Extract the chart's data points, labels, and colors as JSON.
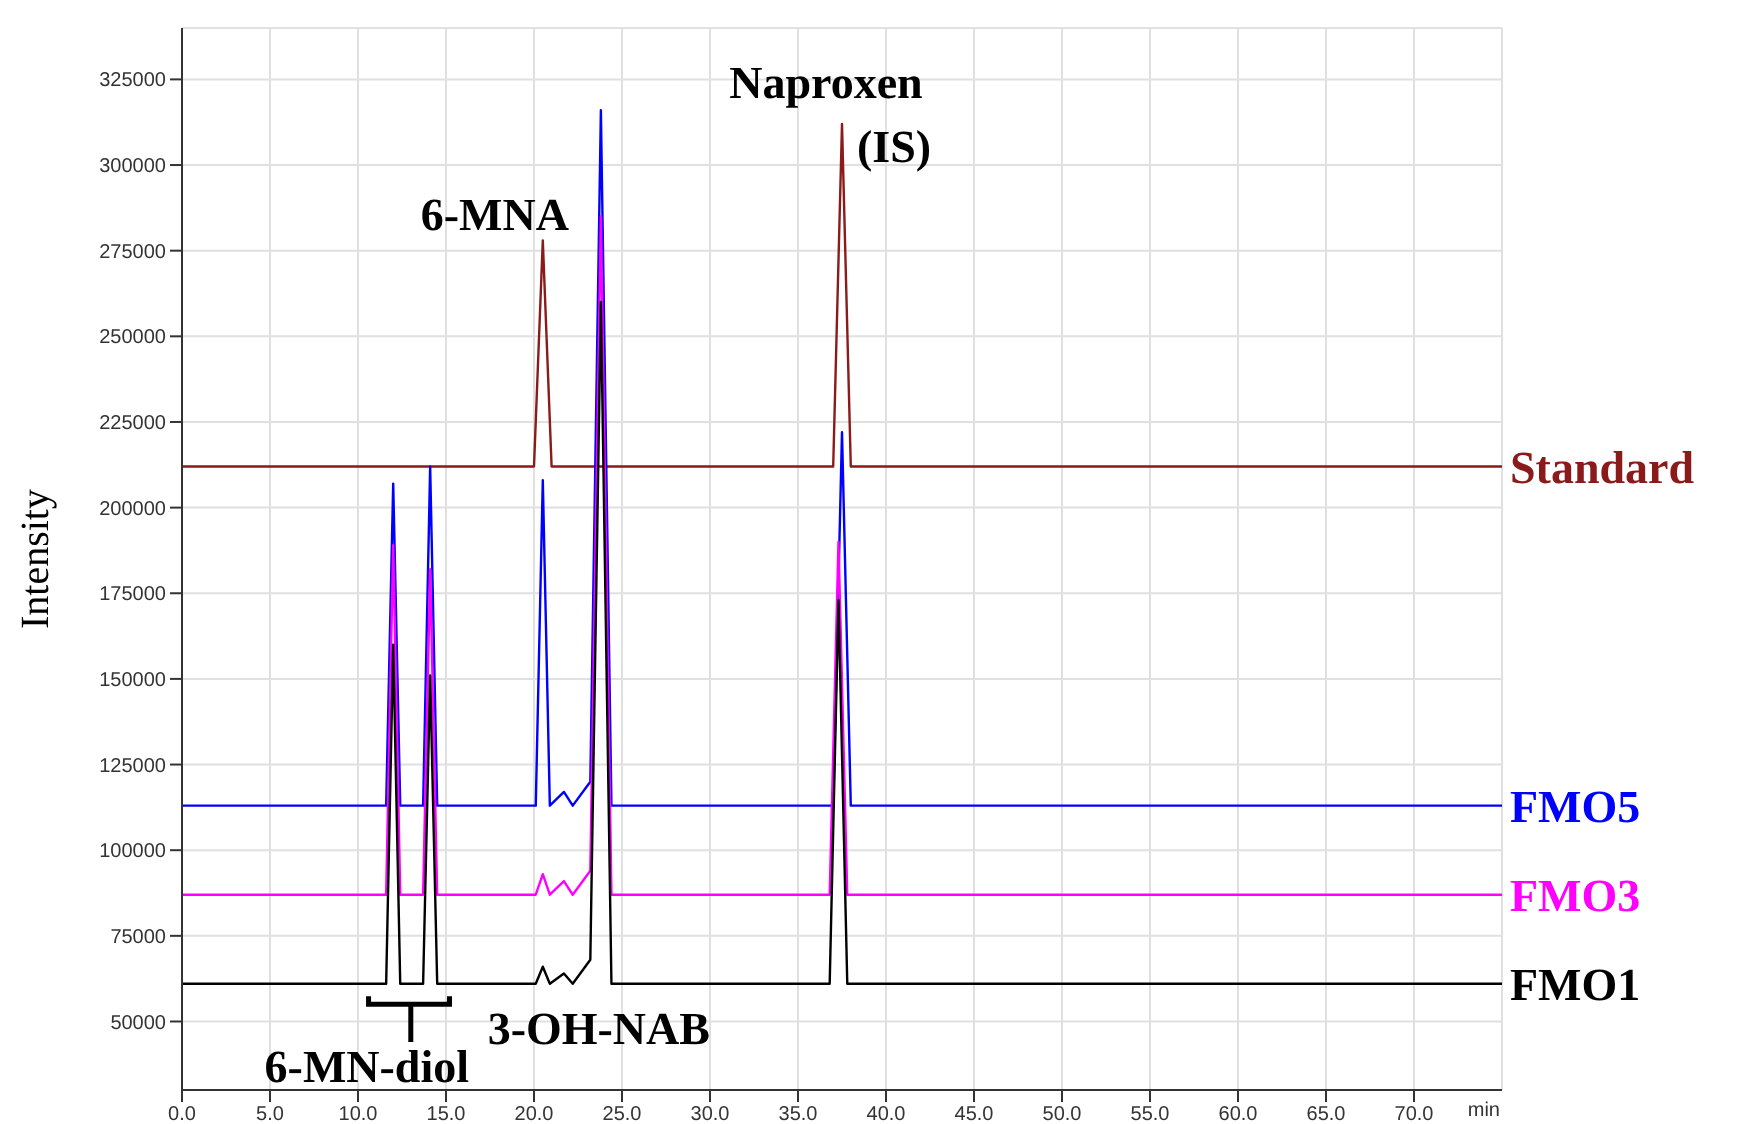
{
  "chart_data": {
    "type": "line",
    "ylabel": "Intensity",
    "xlabel": "min",
    "xlim": [
      0,
      75
    ],
    "ylim": [
      30000,
      340000
    ],
    "xticks": [
      {
        "value": 0,
        "label": "0.0"
      },
      {
        "value": 5,
        "label": "5.0"
      },
      {
        "value": 10,
        "label": "10.0"
      },
      {
        "value": 15,
        "label": "15.0"
      },
      {
        "value": 20,
        "label": "20.0"
      },
      {
        "value": 25,
        "label": "25.0"
      },
      {
        "value": 30,
        "label": "30.0"
      },
      {
        "value": 35,
        "label": "35.0"
      },
      {
        "value": 40,
        "label": "40.0"
      },
      {
        "value": 45,
        "label": "45.0"
      },
      {
        "value": 50,
        "label": "50.0"
      },
      {
        "value": 55,
        "label": "55.0"
      },
      {
        "value": 60,
        "label": "60.0"
      },
      {
        "value": 65,
        "label": "65.0"
      },
      {
        "value": 70,
        "label": "70.0"
      }
    ],
    "yticks": [
      50000,
      75000,
      100000,
      125000,
      150000,
      175000,
      200000,
      225000,
      250000,
      275000,
      300000,
      325000
    ],
    "grid": true,
    "marker": "none",
    "line_style": "solid",
    "series": [
      {
        "name": "Standard",
        "color": "#8b1a1a",
        "x": [
          0,
          20.0,
          20.5,
          21.0,
          37.0,
          37.5,
          38.0,
          75
        ],
        "values": [
          212000,
          212000,
          278000,
          212000,
          212000,
          312000,
          212000,
          212000
        ]
      },
      {
        "name": "FMO5",
        "color": "#0000ff",
        "x": [
          0,
          11.6,
          12.0,
          12.4,
          13.7,
          14.1,
          14.5,
          20.1,
          20.5,
          20.9,
          21.7,
          22.2,
          23.2,
          23.8,
          24.4,
          37.0,
          37.5,
          38.0,
          75
        ],
        "values": [
          113000,
          113000,
          207000,
          113000,
          113000,
          212000,
          113000,
          113000,
          208000,
          113000,
          117000,
          113000,
          120000,
          316000,
          113000,
          113000,
          222000,
          113000,
          113000
        ]
      },
      {
        "name": "FMO3",
        "color": "#ff00ff",
        "x": [
          0,
          11.6,
          12.0,
          12.4,
          13.7,
          14.1,
          14.5,
          20.1,
          20.5,
          20.9,
          21.7,
          22.2,
          23.2,
          23.8,
          24.4,
          36.8,
          37.3,
          37.8,
          75
        ],
        "values": [
          87000,
          87000,
          189000,
          87000,
          87000,
          182000,
          87000,
          87000,
          93000,
          87000,
          91000,
          87000,
          94000,
          285000,
          87000,
          87000,
          190000,
          87000,
          87000
        ]
      },
      {
        "name": "FMO1",
        "color": "#000000",
        "x": [
          0,
          11.6,
          12.0,
          12.4,
          13.7,
          14.1,
          14.5,
          20.1,
          20.5,
          20.9,
          21.7,
          22.2,
          23.2,
          23.8,
          24.4,
          36.8,
          37.3,
          37.8,
          75
        ],
        "values": [
          61000,
          61000,
          160000,
          61000,
          61000,
          151000,
          61000,
          61000,
          66000,
          61000,
          64000,
          61000,
          68000,
          260000,
          61000,
          61000,
          173000,
          61000,
          61000
        ]
      }
    ],
    "annotations": [
      {
        "text": "6-MNA",
        "x": 20.5,
        "y": 278000
      },
      {
        "text": "Naproxen (IS)",
        "x": 37.5,
        "y": 312000
      },
      "3-OH-NAB",
      "6-MN-diol"
    ]
  }
}
